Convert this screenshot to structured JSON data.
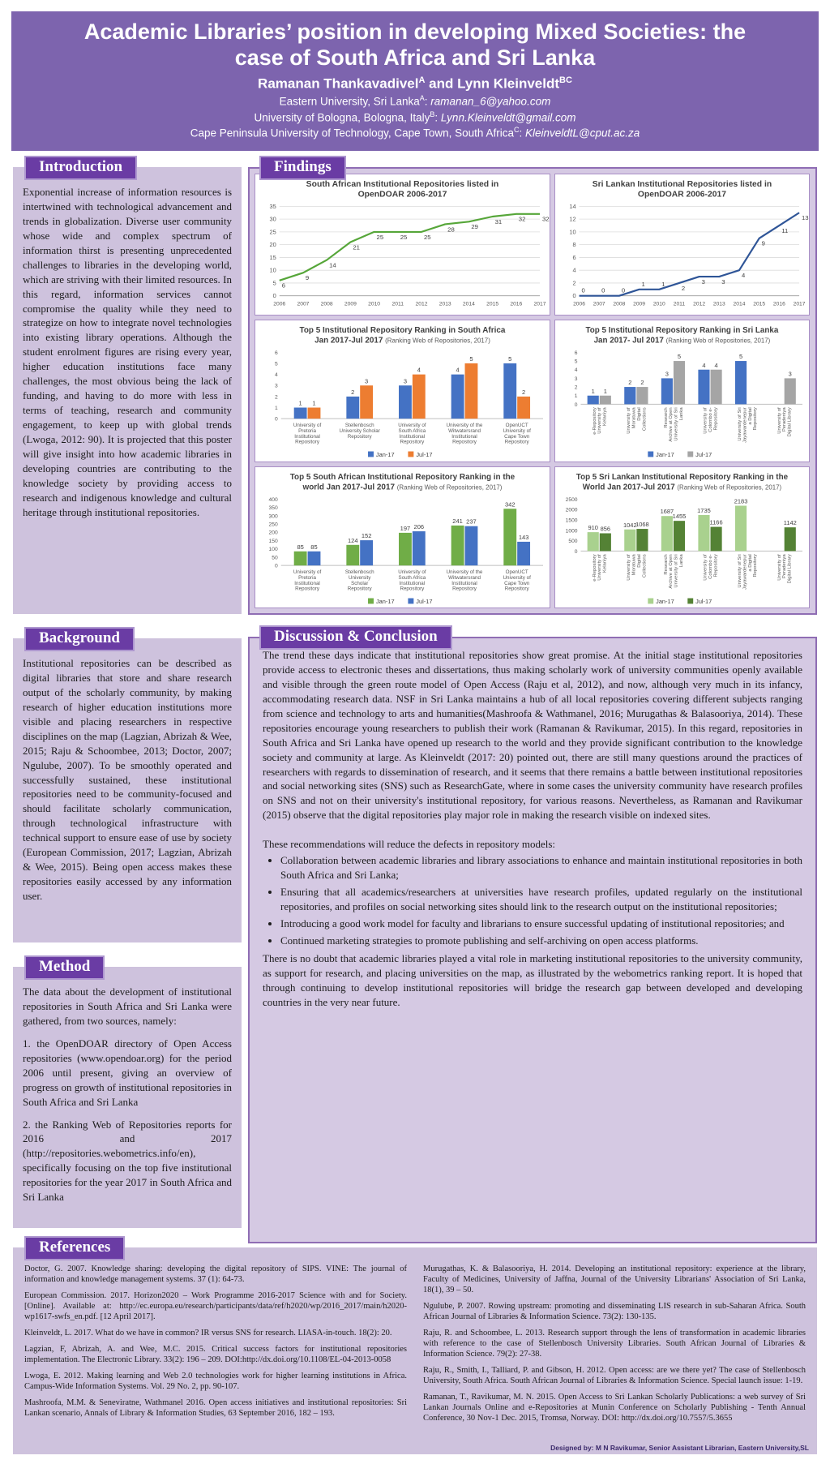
{
  "header": {
    "title": "Academic Libraries’ position in developing Mixed Societies: the case of South Africa and Sri Lanka",
    "author1": {
      "name": "Ramanan Thankavadivel",
      "sup": "A"
    },
    "authors_joiner": " and ",
    "author2": {
      "name": "Lynn Kleinveldt",
      "sup": "BC"
    },
    "affiliations": [
      {
        "text": "Eastern University, Sri Lanka",
        "sup": "A",
        "sep": ": ",
        "email": "ramanan_6@yahoo.com"
      },
      {
        "text": "University of Bologna, Bologna, Italy",
        "sup": "B",
        "sep": ": ",
        "email": "Lynn.Kleinveldt@gmail.com"
      },
      {
        "text": "Cape Peninsula University of Technology, Cape Town, South Africa",
        "sup": "C",
        "sep": ": ",
        "email": "KleinveldtL@cput.ac.za"
      }
    ]
  },
  "introduction": {
    "heading": "Introduction",
    "body": "Exponential increase of information resources is intertwined with technological advancement and trends in globalization. Diverse user community whose wide and complex spectrum of information thirst is presenting unprecedented challenges to libraries in the developing world, which are striving with their limited resources. In this regard, information services cannot compromise the quality while they need to strategize on how to integrate novel technologies into existing library operations. Although the student enrolment figures are rising every year, higher education institutions face many challenges, the most obvious being the lack of funding, and having to do more with less in terms of teaching, research and community engagement, to keep up with global trends (Lwoga, 2012: 90).  It is projected that this poster will give insight into how academic libraries in developing countries are contributing to the knowledge society by providing access to research and indigenous knowledge and cultural heritage through institutional repositories."
  },
  "background": {
    "heading": "Background",
    "body": "Institutional repositories can be described as digital libraries that store and share research output of the scholarly community, by making research of higher education institutions more visible and placing researchers in respective disciplines on the map (Lagzian, Abrizah & Wee, 2015; Raju & Schoombee, 2013; Doctor, 2007; Ngulube, 2007). To be smoothly operated and successfully sustained, these institutional repositories need to be community-focused and should facilitate scholarly communication, through technological infrastructure with technical support to ensure ease of use by society (European Commission, 2017; Lagzian, Abrizah & Wee, 2015). Being open access makes these repositories easily accessed by any information user."
  },
  "method": {
    "heading": "Method",
    "para1": "The data about the development of institutional repositories in South Africa and Sri Lanka were gathered, from two sources, namely:",
    "item1": "1. the OpenDOAR directory of Open Access repositories (www.opendoar.org) for the period 2006 until present, giving an overview of progress on growth of institutional repositories in South Africa and Sri Lanka",
    "item2": "2. the Ranking Web of Repositories reports for 2016 and 2017 (http://repositories.webometrics.info/en), specifically focusing on the top five institutional repositories for the year 2017 in South Africa and Sri Lanka"
  },
  "findings": {
    "heading": "Findings"
  },
  "discussion": {
    "heading": "Discussion & Conclusion",
    "para1": "The trend these days indicate that institutional repositories show great promise. At the initial stage institutional repositories provide access to electronic theses and dissertations, thus making scholarly work of university communities openly available and visible through the green route model of Open Access (Raju et al, 2012), and now, although very much in its infancy, accommodating research data. NSF in Sri Lanka maintains a hub of all local repositories covering different subjects ranging from science and technology to arts and humanities(Mashroofa & Wathmanel, 2016; Murugathas & Balasooriya, 2014). These repositories encourage young researchers to publish their work (Ramanan & Ravikumar, 2015). In this regard, repositories in South Africa and Sri Lanka have opened up research to the world and they provide significant contribution to the knowledge society and community at large.  As Kleinveldt (2017: 20) pointed out, there are still many questions around the practices of researchers with regards to dissemination of research, and it seems that there remains a battle between institutional repositories and social networking sites (SNS) such as ResearchGate, where in some cases the university community have research profiles on SNS and not on their university's institutional repository, for various reasons. Nevertheless, as Ramanan and Ravikumar (2015) observe that the digital repositories play major role in making the research visible on indexed sites.",
    "reco_intro": "These recommendations will reduce the defects in repository models:",
    "bullets": [
      "Collaboration between academic libraries and library associations to enhance and maintain institutional repositories in both South Africa and Sri Lanka;",
      "Ensuring that all academics/researchers at universities have research profiles, updated regularly on the institutional repositories, and profiles on social networking sites should link to the research output on the institutional repositories;",
      "Introducing a good work model for faculty and librarians to ensure successful updating of institutional repositories; and",
      "Continued marketing strategies to promote publishing and self-archiving on open access platforms."
    ],
    "para2": "There is no doubt that academic libraries played a vital role in marketing institutional repositories to the university community, as support for research, and placing universities on the map, as illustrated by the webometrics ranking report. It is hoped that through continuing to develop institutional repositories will bridge the research gap between developed and developing countries in the very near future."
  },
  "references": {
    "heading": "References",
    "left": [
      "Doctor, G. 2007. Knowledge sharing: developing the digital repository of SIPS. VINE: The journal of information and knowledge management systems. 37 (1): 64-73.",
      "European Commission. 2017. Horizon2020 – Work Programme 2016-2017 Science with and for Society. [Online]. Available at: http://ec.europa.eu/research/participants/data/ref/h2020/wp/2016_2017/main/h2020-wp1617-swfs_en.pdf. [12 April 2017].",
      "Kleinveldt, L. 2017. What do we have in common? IR versus SNS for research. LIASA-in-touch. 18(2): 20.",
      "Lagzian, F, Abrizah, A. and Wee, M.C. 2015. Critical success factors for institutional repositories implementation. The Electronic Library. 33(2): 196 – 209. DOI:http://dx.doi.org/10.1108/EL-04-2013-0058",
      "Lwoga, E. 2012. Making learning and Web 2.0 technologies work for higher learning institutions in Africa. Campus-Wide Information Systems. Vol. 29 No. 2, pp. 90-107.",
      "Mashroofa, M.M. & Seneviratne, Wathmanel 2016. Open access initiatives and institutional repositories: Sri Lankan scenario, Annals of Library & Information Studies, 63 September 2016, 182 – 193."
    ],
    "right": [
      "Murugathas, K. & Balasooriya, H. 2014. Developing an institutional repository: experience at the library, Faculty of Medicines, University of Jaffna, Journal of the University Librarians' Association of Sri Lanka, 18(1), 39 – 50.",
      "Ngulube, P. 2007. Rowing upstream: promoting and disseminating LIS research in sub-Saharan Africa. South African Journal of Libraries & Information Science. 73(2): 130-135.",
      "Raju, R. and Schoombee, L. 2013. Research support through the lens of transformation in academic libraries with reference to the case of Stellenbosch University Libraries. South African Journal of Libraries & Information Science. 79(2): 27-38.",
      "Raju, R., Smith, I., Talliard, P. and Gibson, H. 2012. Open access: are we there yet? The case of Stellenbosch University, South Africa. South African Journal of Libraries & Information Science. Special launch issue: 1-19.",
      "Ramanan, T., Ravikumar, M. N. 2015. Open Access to Sri Lankan Scholarly Publications: a web survey of Sri Lankan Journals Online and e-Repositories at Munin Conference on Scholarly Publishing - Tenth Annual Conference, 30 Nov-1 Dec. 2015, Tromsø, Norway. DOI: http://dx.doi.org/10.7557/5.3655"
    ]
  },
  "footer": {
    "credit": "Designed by: M N Ravikumar, Senior Assistant Librarian, Eastern University,SL"
  },
  "chart_data": [
    {
      "type": "line",
      "title_lines": [
        "South African Institutional Repositories listed in",
        "OpenDOAR 2006-2017"
      ],
      "x": [
        "2006",
        "2007",
        "2008",
        "2009",
        "2010",
        "2011",
        "2012",
        "2013",
        "2014",
        "2015",
        "2016",
        "2017"
      ],
      "values": [
        6,
        9,
        14,
        21,
        25,
        25,
        25,
        28,
        29,
        31,
        32,
        32
      ],
      "ylim": [
        0,
        35
      ],
      "ytick": 5,
      "grid": true,
      "line_color": "#56a639"
    },
    {
      "type": "line",
      "title_lines": [
        "Sri Lankan Institutional Repositories listed in",
        "OpenDOAR 2006-2017"
      ],
      "x": [
        "2006",
        "2007",
        "2008",
        "2009",
        "2010",
        "2011",
        "2012",
        "2013",
        "2014",
        "2015",
        "2016",
        "2017"
      ],
      "values": [
        0,
        0,
        0,
        1,
        1,
        2,
        3,
        3,
        4,
        9,
        11,
        13
      ],
      "ylim": [
        0,
        14
      ],
      "ytick": 2,
      "grid": true,
      "line_color": "#2f5597"
    },
    {
      "type": "bar",
      "t1": "Top 5 Institutional Repository Ranking in South Africa",
      "t2b": "Jan 2017-Jul 2017",
      "t2n": "(Ranking Web of Repositories, 2017)",
      "categories": [
        [
          "University of",
          "Pretoria",
          "Institutional",
          "Repository"
        ],
        [
          "Stellenbosch",
          "University Scholar",
          "Repository"
        ],
        [
          "University of",
          "South Africa",
          "Institutional",
          "Repository"
        ],
        [
          "University of the",
          "Witwatersrand",
          "Institutional",
          "Repository"
        ],
        [
          "OpenUCT",
          "University of",
          "Cape Town",
          "Repository"
        ]
      ],
      "series": [
        {
          "name": "Jan-17",
          "color": "#4472c4",
          "values": [
            1,
            2,
            3,
            4,
            5
          ]
        },
        {
          "name": "Jul-17",
          "color": "#ed7d31",
          "values": [
            1,
            3,
            4,
            5,
            2
          ]
        }
      ],
      "ylim": [
        0,
        6
      ],
      "ytick": 1,
      "cat_rotate": false,
      "legend_position": "bottom"
    },
    {
      "type": "bar",
      "t1": "Top 5 Institutional Repository Ranking in Sri Lanka",
      "t2b": "Jan 2017- Jul 2017",
      "t2n": "(Ranking Web of Repositories, 2017)",
      "categories": [
        [
          "e-Repository",
          "University of",
          "Kelaniya"
        ],
        [
          "University of",
          "Moratuwa",
          "Digital",
          "Collections"
        ],
        [
          "Research",
          "Archive at Open",
          "University of Sri",
          "Lanka"
        ],
        [
          "University of",
          "Colombo e-",
          "Repository"
        ],
        [
          "University of Sri",
          "Jayawardenepur",
          "a Digital",
          "Repository"
        ],
        [
          "University of",
          "Peradeniya",
          "Digital Library"
        ]
      ],
      "series": [
        {
          "name": "Jan-17",
          "color": "#4472c4",
          "values": [
            1,
            2,
            3,
            4,
            5,
            null
          ]
        },
        {
          "name": "Jul-17",
          "color": "#a5a5a5",
          "values": [
            1,
            2,
            5,
            4,
            null,
            3
          ]
        }
      ],
      "ylim": [
        0,
        6
      ],
      "ytick": 1,
      "cat_rotate": true,
      "legend_position": "bottom"
    },
    {
      "type": "bar",
      "t1": "Top 5 South African Institutional Repository Ranking in the",
      "t2b": "world Jan 2017-Jul 2017",
      "t2n": "(Ranking Web of Repositories, 2017)",
      "categories": [
        [
          "University of",
          "Pretoria",
          "Institutional",
          "Repository"
        ],
        [
          "Stellenbosch",
          "University",
          "Scholar",
          "Repository"
        ],
        [
          "University of",
          "South Africa",
          "Institutional",
          "Repository"
        ],
        [
          "University of the",
          "Witwatersrand",
          "Institutional",
          "Repository"
        ],
        [
          "OpenUCT",
          "University of",
          "Cape Town",
          "Repository"
        ]
      ],
      "series": [
        {
          "name": "Jan-17",
          "color": "#70ad47",
          "values": [
            85,
            124,
            197,
            241,
            342
          ]
        },
        {
          "name": "Jul-17",
          "color": "#4472c4",
          "values": [
            85,
            152,
            206,
            237,
            143
          ]
        }
      ],
      "ylim": [
        0,
        400
      ],
      "ytick": 50,
      "cat_rotate": false,
      "legend_position": "bottom"
    },
    {
      "type": "bar",
      "t1": "Top 5 Sri Lankan Institutional Repository Ranking in the",
      "t2b": "World Jan 2017-Jul 2017",
      "t2n": "(Ranking Web of Repositories, 2017)",
      "categories": [
        [
          "e-Repository",
          "University of",
          "Kelaniya"
        ],
        [
          "University of",
          "Moratuwa",
          "Digital",
          "Collections"
        ],
        [
          "Research",
          "Archive at Open",
          "University of Sri",
          "Lanka"
        ],
        [
          "University of",
          "Colombo e-",
          "Repository"
        ],
        [
          "University of Sri",
          "Jayawardenepur",
          "a Digital",
          "Repository"
        ],
        [
          "University of",
          "Peradeniya",
          "Digital Library"
        ]
      ],
      "series": [
        {
          "name": "Jan-17",
          "color": "#a9d18e",
          "values": [
            910,
            1042,
            1687,
            1735,
            2183,
            null
          ]
        },
        {
          "name": "Jul-17",
          "color": "#548235",
          "values": [
            856,
            1068,
            1455,
            1166,
            null,
            1142
          ]
        }
      ],
      "ylim": [
        0,
        2500
      ],
      "ytick": 500,
      "cat_rotate": true,
      "legend_position": "bottom"
    }
  ]
}
